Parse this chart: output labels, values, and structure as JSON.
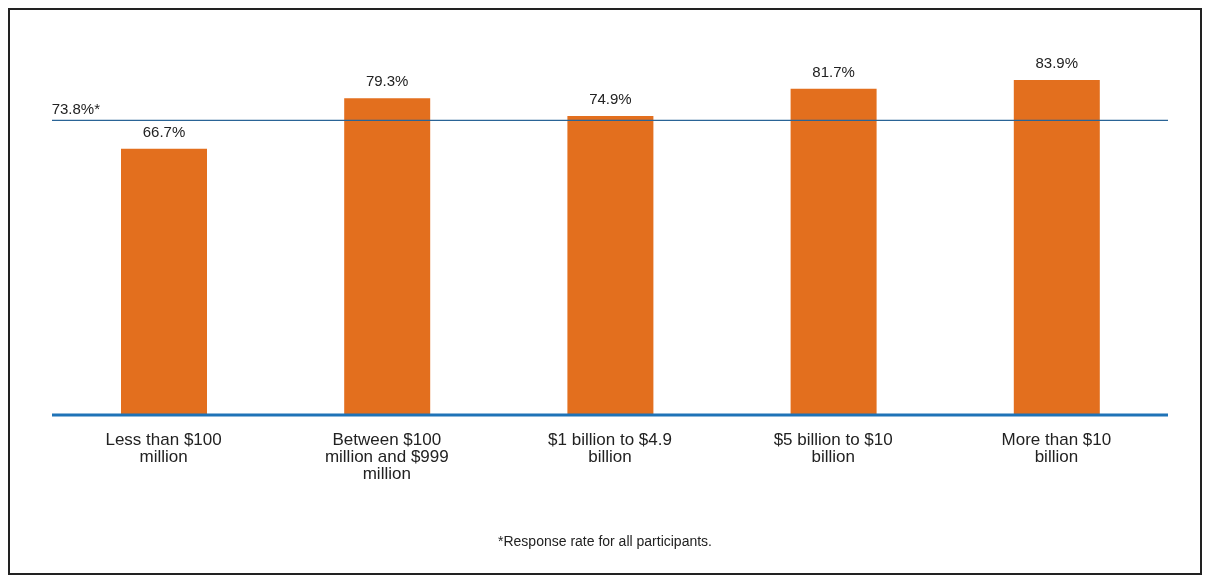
{
  "chart_data": {
    "type": "bar",
    "categories": [
      "Less than $100 million",
      "Between $100 million and $999 million",
      "$1 billion to $4.9 billion",
      "$5 billion to $10 billion",
      "More than $10 billion"
    ],
    "values": [
      66.7,
      79.3,
      74.9,
      81.7,
      83.9
    ],
    "color": "#e36f1e",
    "value_labels": [
      "66.7%",
      "79.3%",
      "74.9%",
      "81.7%",
      "83.9%"
    ],
    "ref_lines": [
      {
        "axis": "y",
        "value": 73.8,
        "label": "73.8%*",
        "color": "#2a6496"
      }
    ],
    "annotations": [
      "*Response rate for all participants."
    ],
    "tick_labels": "x"
  }
}
